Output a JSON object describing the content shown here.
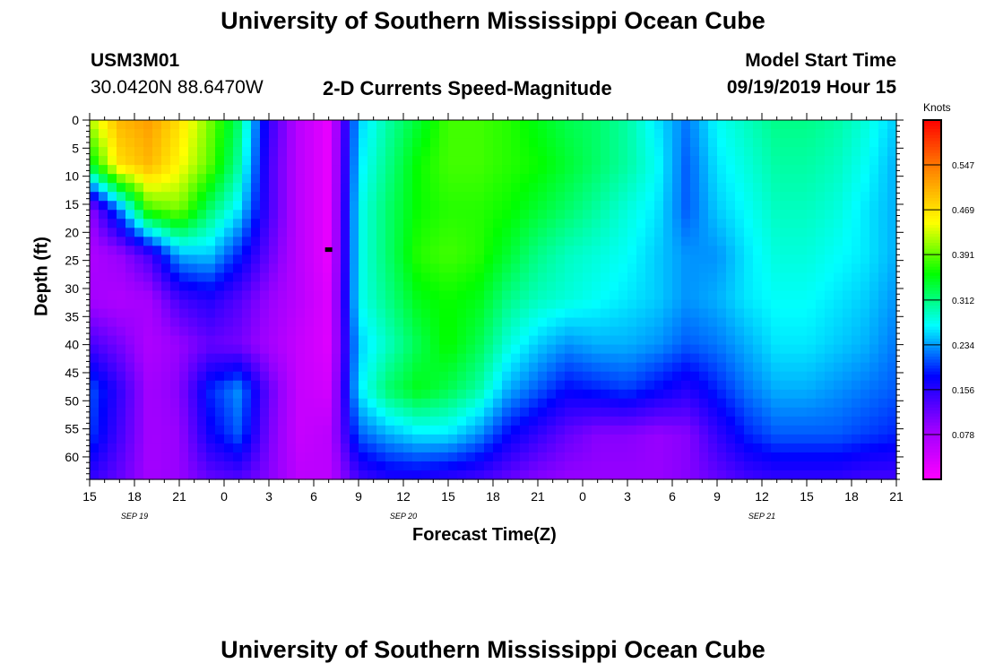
{
  "header": {
    "title": "University of Southern Mississippi Ocean Cube",
    "station_id": "USM3M01",
    "station_coords": "30.0420N 88.6470W",
    "plot_title": "2-D Currents Speed-Magnitude",
    "model_start_label": "Model Start Time",
    "model_start_value": "09/19/2019 Hour 15"
  },
  "footer": {
    "title": "University of Southern Mississippi Ocean Cube"
  },
  "colors": {
    "scale": [
      "#ff00ff",
      "#9900ff",
      "#0000ff",
      "#00ffff",
      "#00ff00",
      "#ffff00",
      "#ff8800",
      "#ff0000"
    ]
  },
  "chart_data": {
    "type": "heatmap",
    "xlabel": "Forecast Time(Z)",
    "ylabel": "Depth (ft)",
    "x_tick_labels": [
      "15",
      "18",
      "21",
      "0",
      "3",
      "6",
      "9",
      "12",
      "15",
      "18",
      "21",
      "0",
      "3",
      "6",
      "9",
      "12",
      "15",
      "18",
      "21"
    ],
    "date_labels": [
      {
        "text": "SEP 19",
        "hour": 3
      },
      {
        "text": "SEP 20",
        "hour": 21
      },
      {
        "text": "SEP 21",
        "hour": 45
      }
    ],
    "x_hours_range": [
      0,
      54
    ],
    "y_tick_labels": [
      "0",
      "5",
      "10",
      "15",
      "20",
      "25",
      "30",
      "35",
      "40",
      "45",
      "50",
      "55",
      "60"
    ],
    "ylim": [
      0,
      64
    ],
    "colorbar": {
      "unit": "Knots",
      "ticks": [
        "0.547",
        "0.469",
        "0.391",
        "0.312",
        "0.234",
        "0.156",
        "0.078"
      ],
      "range": [
        0,
        0.625
      ]
    },
    "speed_grid": {
      "hours": [
        0,
        2,
        4,
        6,
        8,
        10,
        12,
        14,
        16,
        18,
        20,
        22,
        24,
        26,
        28,
        30,
        32,
        34,
        36,
        38,
        40,
        42,
        44,
        46,
        48,
        50,
        52,
        54
      ],
      "depths": [
        0,
        8,
        16,
        24,
        32,
        40,
        48,
        56,
        64
      ],
      "values": [
        [
          0.42,
          0.5,
          0.52,
          0.47,
          0.4,
          0.32,
          0.15,
          0.06,
          0.02,
          0.25,
          0.3,
          0.34,
          0.38,
          0.38,
          0.37,
          0.35,
          0.33,
          0.32,
          0.3,
          0.26,
          0.22,
          0.27,
          0.29,
          0.31,
          0.31,
          0.3,
          0.28,
          0.25
        ],
        [
          0.34,
          0.47,
          0.5,
          0.45,
          0.39,
          0.3,
          0.14,
          0.06,
          0.02,
          0.26,
          0.31,
          0.36,
          0.38,
          0.38,
          0.37,
          0.36,
          0.34,
          0.32,
          0.3,
          0.27,
          0.21,
          0.26,
          0.28,
          0.3,
          0.3,
          0.29,
          0.27,
          0.24
        ],
        [
          0.09,
          0.22,
          0.38,
          0.4,
          0.32,
          0.26,
          0.14,
          0.06,
          0.02,
          0.27,
          0.32,
          0.36,
          0.37,
          0.37,
          0.36,
          0.34,
          0.32,
          0.3,
          0.28,
          0.26,
          0.21,
          0.25,
          0.27,
          0.29,
          0.29,
          0.28,
          0.26,
          0.24
        ],
        [
          0.07,
          0.09,
          0.14,
          0.24,
          0.25,
          0.19,
          0.12,
          0.06,
          0.02,
          0.27,
          0.32,
          0.37,
          0.38,
          0.37,
          0.34,
          0.31,
          0.29,
          0.28,
          0.27,
          0.25,
          0.23,
          0.23,
          0.26,
          0.28,
          0.28,
          0.27,
          0.26,
          0.24
        ],
        [
          0.08,
          0.07,
          0.08,
          0.14,
          0.16,
          0.13,
          0.09,
          0.06,
          0.03,
          0.27,
          0.31,
          0.35,
          0.36,
          0.35,
          0.31,
          0.29,
          0.28,
          0.27,
          0.26,
          0.25,
          0.23,
          0.24,
          0.26,
          0.27,
          0.27,
          0.26,
          0.25,
          0.23
        ],
        [
          0.14,
          0.11,
          0.07,
          0.09,
          0.12,
          0.11,
          0.08,
          0.05,
          0.03,
          0.25,
          0.29,
          0.33,
          0.36,
          0.33,
          0.28,
          0.25,
          0.23,
          0.24,
          0.24,
          0.23,
          0.21,
          0.22,
          0.24,
          0.26,
          0.26,
          0.25,
          0.24,
          0.22
        ],
        [
          0.21,
          0.15,
          0.08,
          0.1,
          0.19,
          0.23,
          0.12,
          0.05,
          0.04,
          0.26,
          0.32,
          0.35,
          0.33,
          0.3,
          0.24,
          0.21,
          0.18,
          0.19,
          0.2,
          0.18,
          0.16,
          0.19,
          0.22,
          0.24,
          0.24,
          0.23,
          0.22,
          0.21
        ],
        [
          0.2,
          0.14,
          0.08,
          0.09,
          0.17,
          0.21,
          0.11,
          0.05,
          0.06,
          0.21,
          0.24,
          0.26,
          0.26,
          0.23,
          0.18,
          0.15,
          0.12,
          0.1,
          0.1,
          0.09,
          0.1,
          0.15,
          0.19,
          0.21,
          0.21,
          0.21,
          0.2,
          0.19
        ],
        [
          0.15,
          0.12,
          0.08,
          0.09,
          0.12,
          0.13,
          0.1,
          0.06,
          0.06,
          0.14,
          0.16,
          0.16,
          0.15,
          0.14,
          0.12,
          0.1,
          0.09,
          0.09,
          0.09,
          0.09,
          0.1,
          0.12,
          0.14,
          0.15,
          0.15,
          0.15,
          0.14,
          0.14
        ]
      ]
    },
    "marker": {
      "hour": 16.0,
      "depth": 23
    }
  }
}
